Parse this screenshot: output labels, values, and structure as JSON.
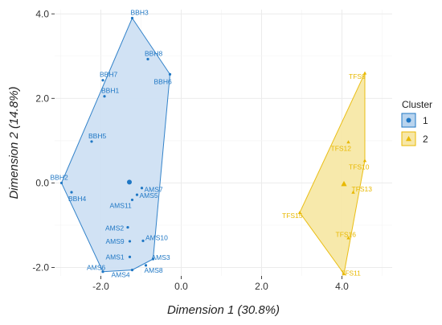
{
  "chart_data": {
    "type": "scatter",
    "xlabel": "Dimension 1 (30.8%)",
    "ylabel": "Dimension 2 (14.8%)",
    "xlim": [
      -3.15,
      5.25
    ],
    "ylim": [
      -2.2,
      4.1
    ],
    "x_ticks": [
      {
        "value": -2.0,
        "label": "-2.0"
      },
      {
        "value": 0.0,
        "label": "0.0"
      },
      {
        "value": 2.0,
        "label": "2.0"
      },
      {
        "value": 4.0,
        "label": "4.0"
      }
    ],
    "y_ticks": [
      {
        "value": -2.0,
        "label": "-2.0"
      },
      {
        "value": 0.0,
        "label": "0.0"
      },
      {
        "value": 2.0,
        "label": "2.0"
      },
      {
        "value": 4.0,
        "label": "4.0"
      }
    ],
    "grid": true,
    "legend": {
      "title": "Cluster",
      "position": "right",
      "entries": [
        {
          "label": "1",
          "shape": "circle",
          "color": "#1f77c4",
          "fill": "#b9d4ee"
        },
        {
          "label": "2",
          "shape": "triangle",
          "color": "#e8b800",
          "fill": "#f7e7a8"
        }
      ]
    },
    "series": [
      {
        "name": "1",
        "shape": "circle",
        "color": "#1f77c4",
        "hull_fill": "#cfe0f3",
        "hull": [
          "BBH3",
          "BBH6",
          "AMS3",
          "AMS4",
          "AMS6",
          "BBH2"
        ],
        "centroid": {
          "x": -1.29,
          "y": 0.02
        },
        "points": [
          {
            "label": "BBH3",
            "x": -1.22,
            "y": 3.9
          },
          {
            "label": "BBH8",
            "x": -0.83,
            "y": 2.93
          },
          {
            "label": "BBH6",
            "x": -0.28,
            "y": 2.57
          },
          {
            "label": "BBH7",
            "x": -1.95,
            "y": 2.43
          },
          {
            "label": "BBH1",
            "x": -1.91,
            "y": 2.05
          },
          {
            "label": "BBH5",
            "x": -2.23,
            "y": 0.98
          },
          {
            "label": "BBH2",
            "x": -2.98,
            "y": 0.0
          },
          {
            "label": "BBH4",
            "x": -2.73,
            "y": -0.22
          },
          {
            "label": "AMS7",
            "x": -0.98,
            "y": -0.12
          },
          {
            "label": "AMS5",
            "x": -1.1,
            "y": -0.28
          },
          {
            "label": "AMS11",
            "x": -1.22,
            "y": -0.4
          },
          {
            "label": "AMS2",
            "x": -1.33,
            "y": -1.05
          },
          {
            "label": "AMS10",
            "x": -0.95,
            "y": -1.37
          },
          {
            "label": "AMS9",
            "x": -1.28,
            "y": -1.38
          },
          {
            "label": "AMS1",
            "x": -1.28,
            "y": -1.75
          },
          {
            "label": "AMS3",
            "x": -0.7,
            "y": -1.8
          },
          {
            "label": "AMS8",
            "x": -0.88,
            "y": -1.95
          },
          {
            "label": "AMS4",
            "x": -1.22,
            "y": -2.06
          },
          {
            "label": "AMS6",
            "x": -1.95,
            "y": -2.1
          }
        ]
      },
      {
        "name": "2",
        "shape": "triangle",
        "color": "#e8b800",
        "hull_fill": "#f7e8a6",
        "hull": [
          "TFS9",
          "TFS10",
          "TFS11",
          "TFS15"
        ],
        "centroid": {
          "x": 4.05,
          "y": -0.02
        },
        "points": [
          {
            "label": "TFS9",
            "x": 4.57,
            "y": 2.6
          },
          {
            "label": "TFS12",
            "x": 4.16,
            "y": 0.97
          },
          {
            "label": "TFS10",
            "x": 4.57,
            "y": 0.53
          },
          {
            "label": "TFS13",
            "x": 4.28,
            "y": -0.22
          },
          {
            "label": "TFS15",
            "x": 2.95,
            "y": -0.7
          },
          {
            "label": "TFS16",
            "x": 4.16,
            "y": -1.3
          },
          {
            "label": "TFS11",
            "x": 4.05,
            "y": -2.15
          }
        ]
      }
    ]
  }
}
